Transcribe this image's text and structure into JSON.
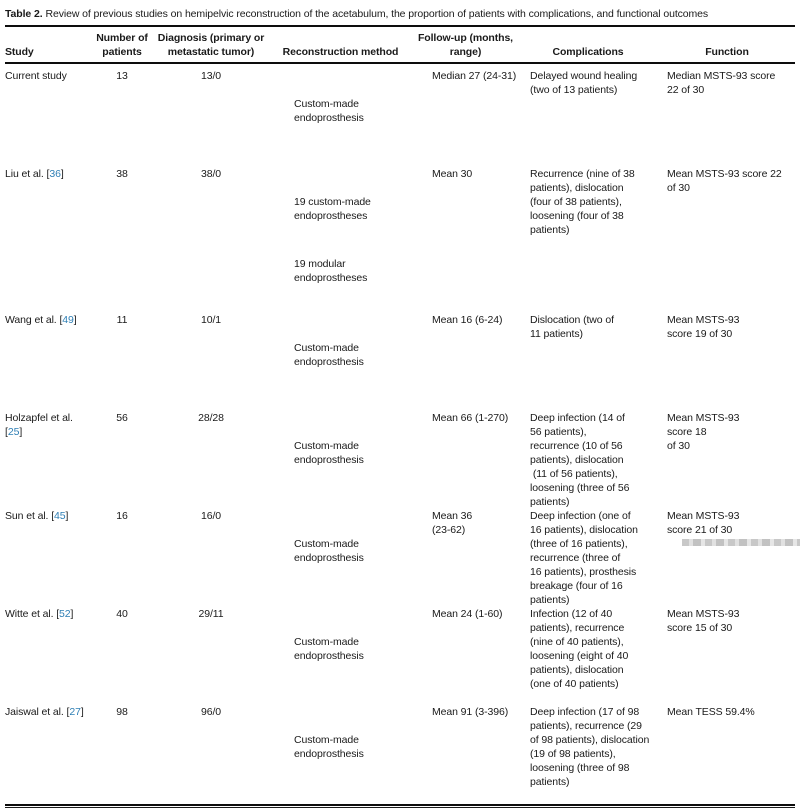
{
  "title": {
    "label": "Table 2.",
    "text": "Review of previous studies on hemipelvic reconstruction of the acetabulum, the proportion of patients with complications, and functional outcomes"
  },
  "citation": {
    "open": "[",
    "close": "]"
  },
  "accent_color": "#2f7fb5",
  "columns": [
    {
      "label": "Study"
    },
    {
      "label": "Number of\npatients"
    },
    {
      "label": "Diagnosis (primary or\nmetastatic tumor)"
    },
    {
      "label": "Reconstruction method"
    },
    {
      "label": "Follow-up (months,\nrange)"
    },
    {
      "label": "Complications"
    },
    {
      "label": "Function"
    }
  ],
  "rows": [
    {
      "study": {
        "pre": "Current study",
        "cite": null
      },
      "patients": "13",
      "diagnosis": "13/0",
      "reconstruction": [
        "Custom-made\nendoprosthesis"
      ],
      "followup": "Median 27 (24-31)",
      "complications": "Delayed wound healing\n(two of 13 patients)",
      "function": "Median MSTS-93 score\n22 of 30"
    },
    {
      "study": {
        "pre": "Liu et al. ",
        "cite": "36"
      },
      "patients": "38",
      "diagnosis": "38/0",
      "reconstruction": [
        "19 custom-made\nendoprostheses",
        "19 modular\nendoprostheses"
      ],
      "followup": "Mean 30",
      "complications": "Recurrence (nine of 38\npatients), dislocation\n(four of 38 patients),\nloosening (four of 38\npatients)",
      "function": "Mean MSTS-93 score 22\nof 30"
    },
    {
      "study": {
        "pre": "Wang et al. ",
        "cite": "49"
      },
      "patients": "11",
      "diagnosis": "10/1",
      "reconstruction": [
        "Custom-made\nendoprosthesis"
      ],
      "followup": "Mean 16 (6-24)",
      "complications": "Dislocation (two of\n11 patients)",
      "function": "Mean MSTS-93\nscore 19 of 30"
    },
    {
      "study": {
        "pre": "Holzapfel et al.\n",
        "cite": "25"
      },
      "patients": "56",
      "diagnosis": "28/28",
      "reconstruction": [
        "Custom-made\nendoprosthesis"
      ],
      "followup": "Mean 66 (1-270)",
      "complications": "Deep infection (14 of\n56 patients),\nrecurrence (10 of 56\npatients), dislocation\n (11 of 56 patients),\nloosening (three of 56\npatients)",
      "function": "Mean MSTS-93\nscore 18\nof 30"
    },
    {
      "study": {
        "pre": "Sun et al. ",
        "cite": "45"
      },
      "patients": "16",
      "diagnosis": "16/0",
      "reconstruction": [
        "Custom-made\nendoprosthesis"
      ],
      "followup": "Mean 36\n(23-62)",
      "complications": "Deep infection (one of\n16 patients), dislocation\n(three of 16 patients),\nrecurrence (three of\n16 patients), prosthesis\nbreakage (four of 16\npatients)",
      "function": "Mean MSTS-93\nscore 21 of 30"
    },
    {
      "study": {
        "pre": "Witte et al. ",
        "cite": "52"
      },
      "patients": "40",
      "diagnosis": "29/11",
      "reconstruction": [
        "Custom-made\nendoprosthesis"
      ],
      "followup": "Mean 24 (1-60)",
      "complications": "Infection (12 of 40\npatients), recurrence\n(nine of 40 patients),\nloosening (eight of 40\npatients), dislocation\n(one of 40 patients)",
      "function": "Mean MSTS-93\nscore 15 of 30"
    },
    {
      "study": {
        "pre": "Jaiswal et al. ",
        "cite": "27"
      },
      "patients": "98",
      "diagnosis": "96/0",
      "reconstruction": [
        "Custom-made\nendoprosthesis"
      ],
      "followup": "Mean 91 (3-396)",
      "complications": "Deep infection (17 of 98\npatients), recurrence (29\nof 98 patients), dislocation\n(19 of 98 patients),\nloosening (three of 98\npatients)",
      "function": "Mean TESS 59.4%"
    }
  ]
}
